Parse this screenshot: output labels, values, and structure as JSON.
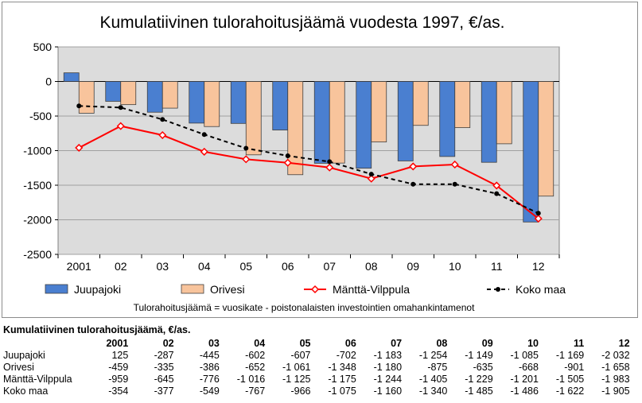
{
  "chart_data": {
    "type": "bar",
    "title": "Kumulatiivinen tulorahoitusjäämä vuodesta 1997, €/as.",
    "categories": [
      "2001",
      "02",
      "03",
      "04",
      "05",
      "06",
      "07",
      "08",
      "09",
      "10",
      "11",
      "12"
    ],
    "ylim": [
      -2500,
      500
    ],
    "yticks": [
      500,
      0,
      -500,
      -1000,
      -1500,
      -2000,
      -2500
    ],
    "ytick_labels": [
      "500",
      "0",
      "-500",
      "-1000",
      "-1500",
      "-2000",
      "-2500"
    ],
    "grid": true,
    "legend_position": "bottom",
    "series": [
      {
        "name": "Juupajoki",
        "kind": "bar",
        "color": "#4a7fd0",
        "values": [
          125,
          -287,
          -445,
          -602,
          -607,
          -702,
          -1183,
          -1254,
          -1149,
          -1085,
          -1169,
          -2032
        ]
      },
      {
        "name": "Orivesi",
        "kind": "bar",
        "color": "#f8c49c",
        "values": [
          -459,
          -335,
          -386,
          -652,
          -1061,
          -1348,
          -1180,
          -875,
          -635,
          -668,
          -901,
          -1658
        ]
      },
      {
        "name": "Mänttä-Vilppula",
        "kind": "line",
        "color": "#ff0000",
        "marker": "diamond-open",
        "values": [
          -959,
          -645,
          -776,
          -1016,
          -1125,
          -1175,
          -1244,
          -1405,
          -1229,
          -1201,
          -1505,
          -1983
        ]
      },
      {
        "name": "Koko maa",
        "kind": "line",
        "color": "#000000",
        "marker": "circle",
        "dashed": true,
        "values": [
          -354,
          -377,
          -549,
          -767,
          -966,
          -1075,
          -1160,
          -1340,
          -1485,
          -1486,
          -1622,
          -1905
        ]
      }
    ],
    "footnote": "Tulorahoitusjäämä = vuosikate - poistonalaisten investointien omahankintamenot",
    "plot_background": "#dcdcdc"
  },
  "table": {
    "title": "Kumulatiivinen tulorahoitusjäämä, €/as.",
    "headers": [
      "2001",
      "02",
      "03",
      "04",
      "05",
      "06",
      "07",
      "08",
      "09",
      "10",
      "11",
      "12"
    ],
    "rows": [
      {
        "label": "Juupajoki",
        "cells": [
          "125",
          "-287",
          "-445",
          "-602",
          "-607",
          "-702",
          "-1 183",
          "-1 254",
          "-1 149",
          "-1 085",
          "-1 169",
          "-2 032"
        ]
      },
      {
        "label": "Orivesi",
        "cells": [
          "-459",
          "-335",
          "-386",
          "-652",
          "-1 061",
          "-1 348",
          "-1 180",
          "-875",
          "-635",
          "-668",
          "-901",
          "-1 658"
        ]
      },
      {
        "label": "Mänttä-Vilppula",
        "cells": [
          "-959",
          "-645",
          "-776",
          "-1 016",
          "-1 125",
          "-1 175",
          "-1 244",
          "-1 405",
          "-1 229",
          "-1 201",
          "-1 505",
          "-1 983"
        ]
      },
      {
        "label": "Koko maa",
        "cells": [
          "-354",
          "-377",
          "-549",
          "-767",
          "-966",
          "-1 075",
          "-1 160",
          "-1 340",
          "-1 485",
          "-1 486",
          "-1 622",
          "-1 905"
        ]
      }
    ]
  }
}
